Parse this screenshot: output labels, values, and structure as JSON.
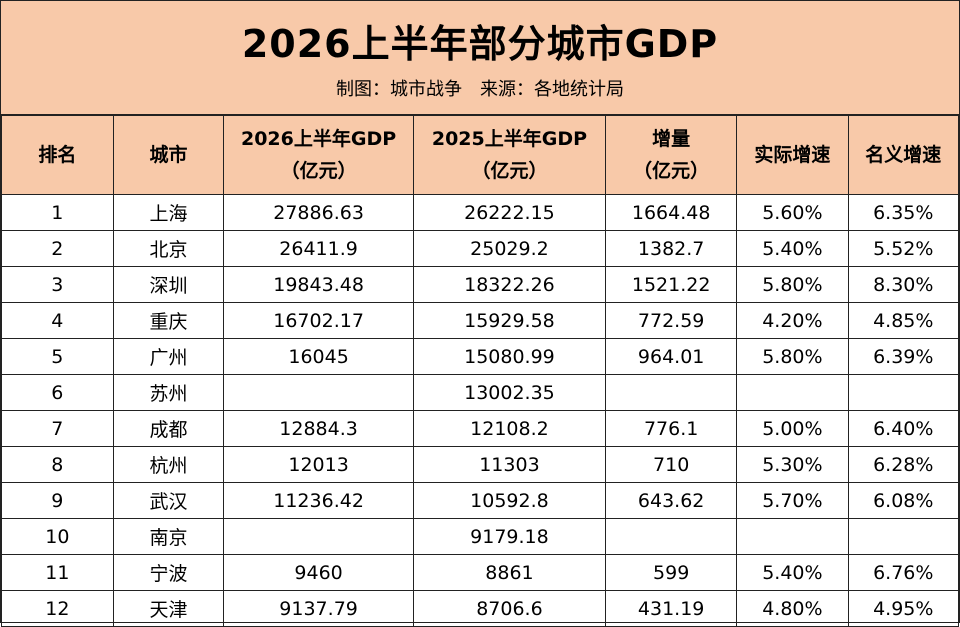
{
  "title": "2026上半年部分城市GDP",
  "subtitle": "制图：城市战争　来源：各地统计局",
  "columns": [
    {
      "line1": "排名",
      "line2": ""
    },
    {
      "line1": "城市",
      "line2": ""
    },
    {
      "line1": "2026上半年GDP",
      "line2": "（亿元）"
    },
    {
      "line1": "2025上半年GDP",
      "line2": "（亿元）"
    },
    {
      "line1": "增量",
      "line2": "（亿元）"
    },
    {
      "line1": "实际增速",
      "line2": ""
    },
    {
      "line1": "名义增速",
      "line2": ""
    }
  ],
  "rows": [
    [
      "1",
      "上海",
      "27886.63",
      "26222.15",
      "1664.48",
      "5.60%",
      "6.35%"
    ],
    [
      "2",
      "北京",
      "26411.9",
      "25029.2",
      "1382.7",
      "5.40%",
      "5.52%"
    ],
    [
      "3",
      "深圳",
      "19843.48",
      "18322.26",
      "1521.22",
      "5.80%",
      "8.30%"
    ],
    [
      "4",
      "重庆",
      "16702.17",
      "15929.58",
      "772.59",
      "4.20%",
      "4.85%"
    ],
    [
      "5",
      "广州",
      "16045",
      "15080.99",
      "964.01",
      "5.80%",
      "6.39%"
    ],
    [
      "6",
      "苏州",
      "",
      "13002.35",
      "",
      "",
      ""
    ],
    [
      "7",
      "成都",
      "12884.3",
      "12108.2",
      "776.1",
      "5.00%",
      "6.40%"
    ],
    [
      "8",
      "杭州",
      "12013",
      "11303",
      "710",
      "5.30%",
      "6.28%"
    ],
    [
      "9",
      "武汉",
      "11236.42",
      "10592.8",
      "643.62",
      "5.70%",
      "6.08%"
    ],
    [
      "10",
      "南京",
      "",
      "9179.18",
      "",
      "",
      ""
    ],
    [
      "11",
      "宁波",
      "9460",
      "8861",
      "599",
      "5.40%",
      "6.76%"
    ],
    [
      "12",
      "天津",
      "9137.79",
      "8706.6",
      "431.19",
      "4.80%",
      "4.95%"
    ]
  ],
  "colors": {
    "header_fill": "#f8c9a9",
    "border": "#222222"
  }
}
